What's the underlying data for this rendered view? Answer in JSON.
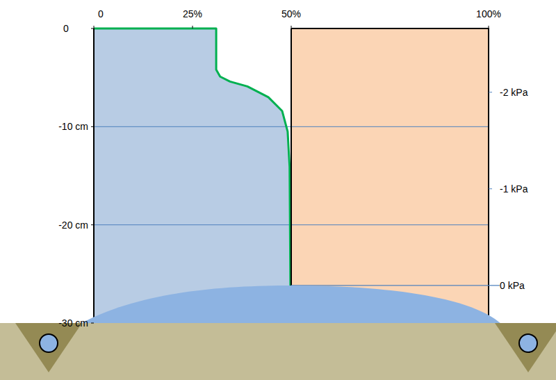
{
  "chart_data": {
    "type": "area",
    "x": [
      0,
      31,
      31,
      32,
      34.5,
      38.9,
      44.2,
      47.7,
      49.1,
      49.6,
      49.8
    ],
    "values": [
      0,
      0,
      -4.2,
      -4.9,
      -5.4,
      -5.9,
      -7,
      -8.4,
      -10.5,
      -14.1,
      -26.2
    ],
    "color": "#00b050",
    "xlim": [
      0,
      100
    ],
    "xticks": [
      0,
      {
        "value": 25,
        "label": "25%"
      },
      {
        "value": 50,
        "label": "50%"
      },
      {
        "value": 100,
        "label": "100%"
      }
    ],
    "ylim": [
      -30,
      0
    ],
    "yticks": [
      0,
      {
        "value": -10,
        "label": "-10 cm"
      },
      {
        "value": -20,
        "label": "-20 cm"
      },
      {
        "value": -30,
        "label": "-30 cm"
      }
    ],
    "y2lim": [
      0.39,
      -2.66
    ],
    "y2ticks": [
      {
        "value": -2,
        "label": "-2 kPa"
      },
      {
        "value": -1,
        "label": "-1 kPa"
      },
      {
        "value": 0,
        "label": "0 kPa"
      }
    ],
    "grid": true
  }
}
